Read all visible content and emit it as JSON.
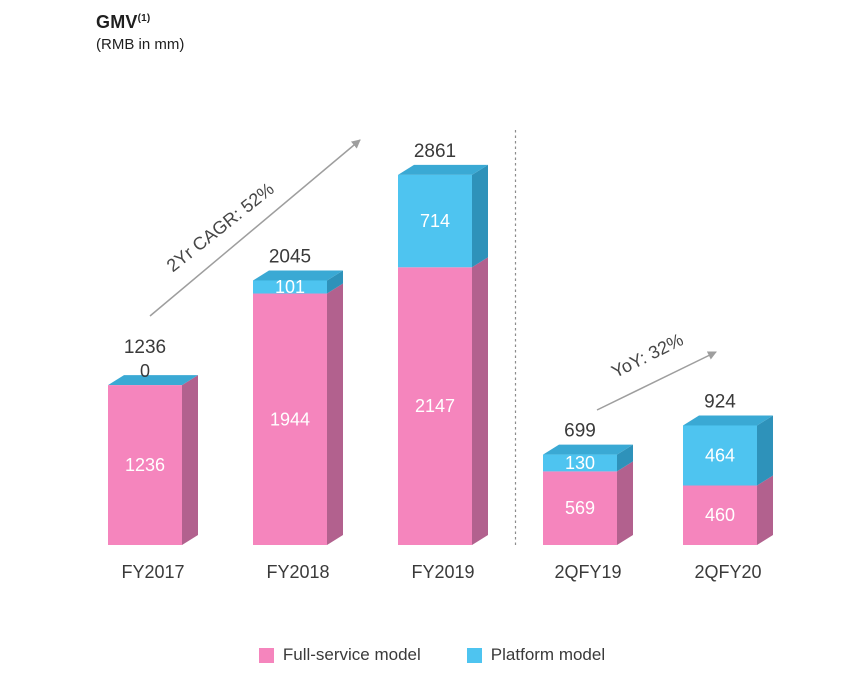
{
  "title": {
    "main": "GMV",
    "superscript": "(1)",
    "subtitle": "(RMB in mm)"
  },
  "chart_data": {
    "type": "bar",
    "subtype": "stacked-3d",
    "title": "GMV (RMB in mm)",
    "categories": [
      "FY2017",
      "FY2018",
      "FY2019",
      "2QFY19",
      "2QFY20"
    ],
    "series": [
      {
        "name": "Full-service model",
        "color": "#F585BD",
        "values": [
          1236,
          1944,
          2147,
          569,
          460
        ]
      },
      {
        "name": "Platform model",
        "color": "#4EC4F0",
        "values": [
          0,
          101,
          714,
          130,
          464
        ]
      }
    ],
    "totals": [
      1236,
      2045,
      2861,
      699,
      924
    ],
    "annotations": [
      {
        "text": "2Yr CAGR: 52%"
      },
      {
        "text": "YoY: 32%"
      }
    ],
    "separator_after_category": "FY2019",
    "legend_position": "bottom",
    "ylim": [
      0,
      3000
    ],
    "grid": false
  },
  "legend": {
    "items": [
      {
        "label": "Full-service model",
        "color": "#F585BD"
      },
      {
        "label": "Platform model",
        "color": "#4EC4F0"
      }
    ]
  },
  "colors": {
    "pink_front": "#F585BD",
    "pink_side": "#B2618E",
    "blue_front": "#4EC4F0",
    "blue_side": "#2E92BA",
    "blue_top": "#3AA9D4",
    "arrow": "#9E9E9E",
    "separator": "#8C8C8C",
    "text": "#3a3a3a"
  }
}
